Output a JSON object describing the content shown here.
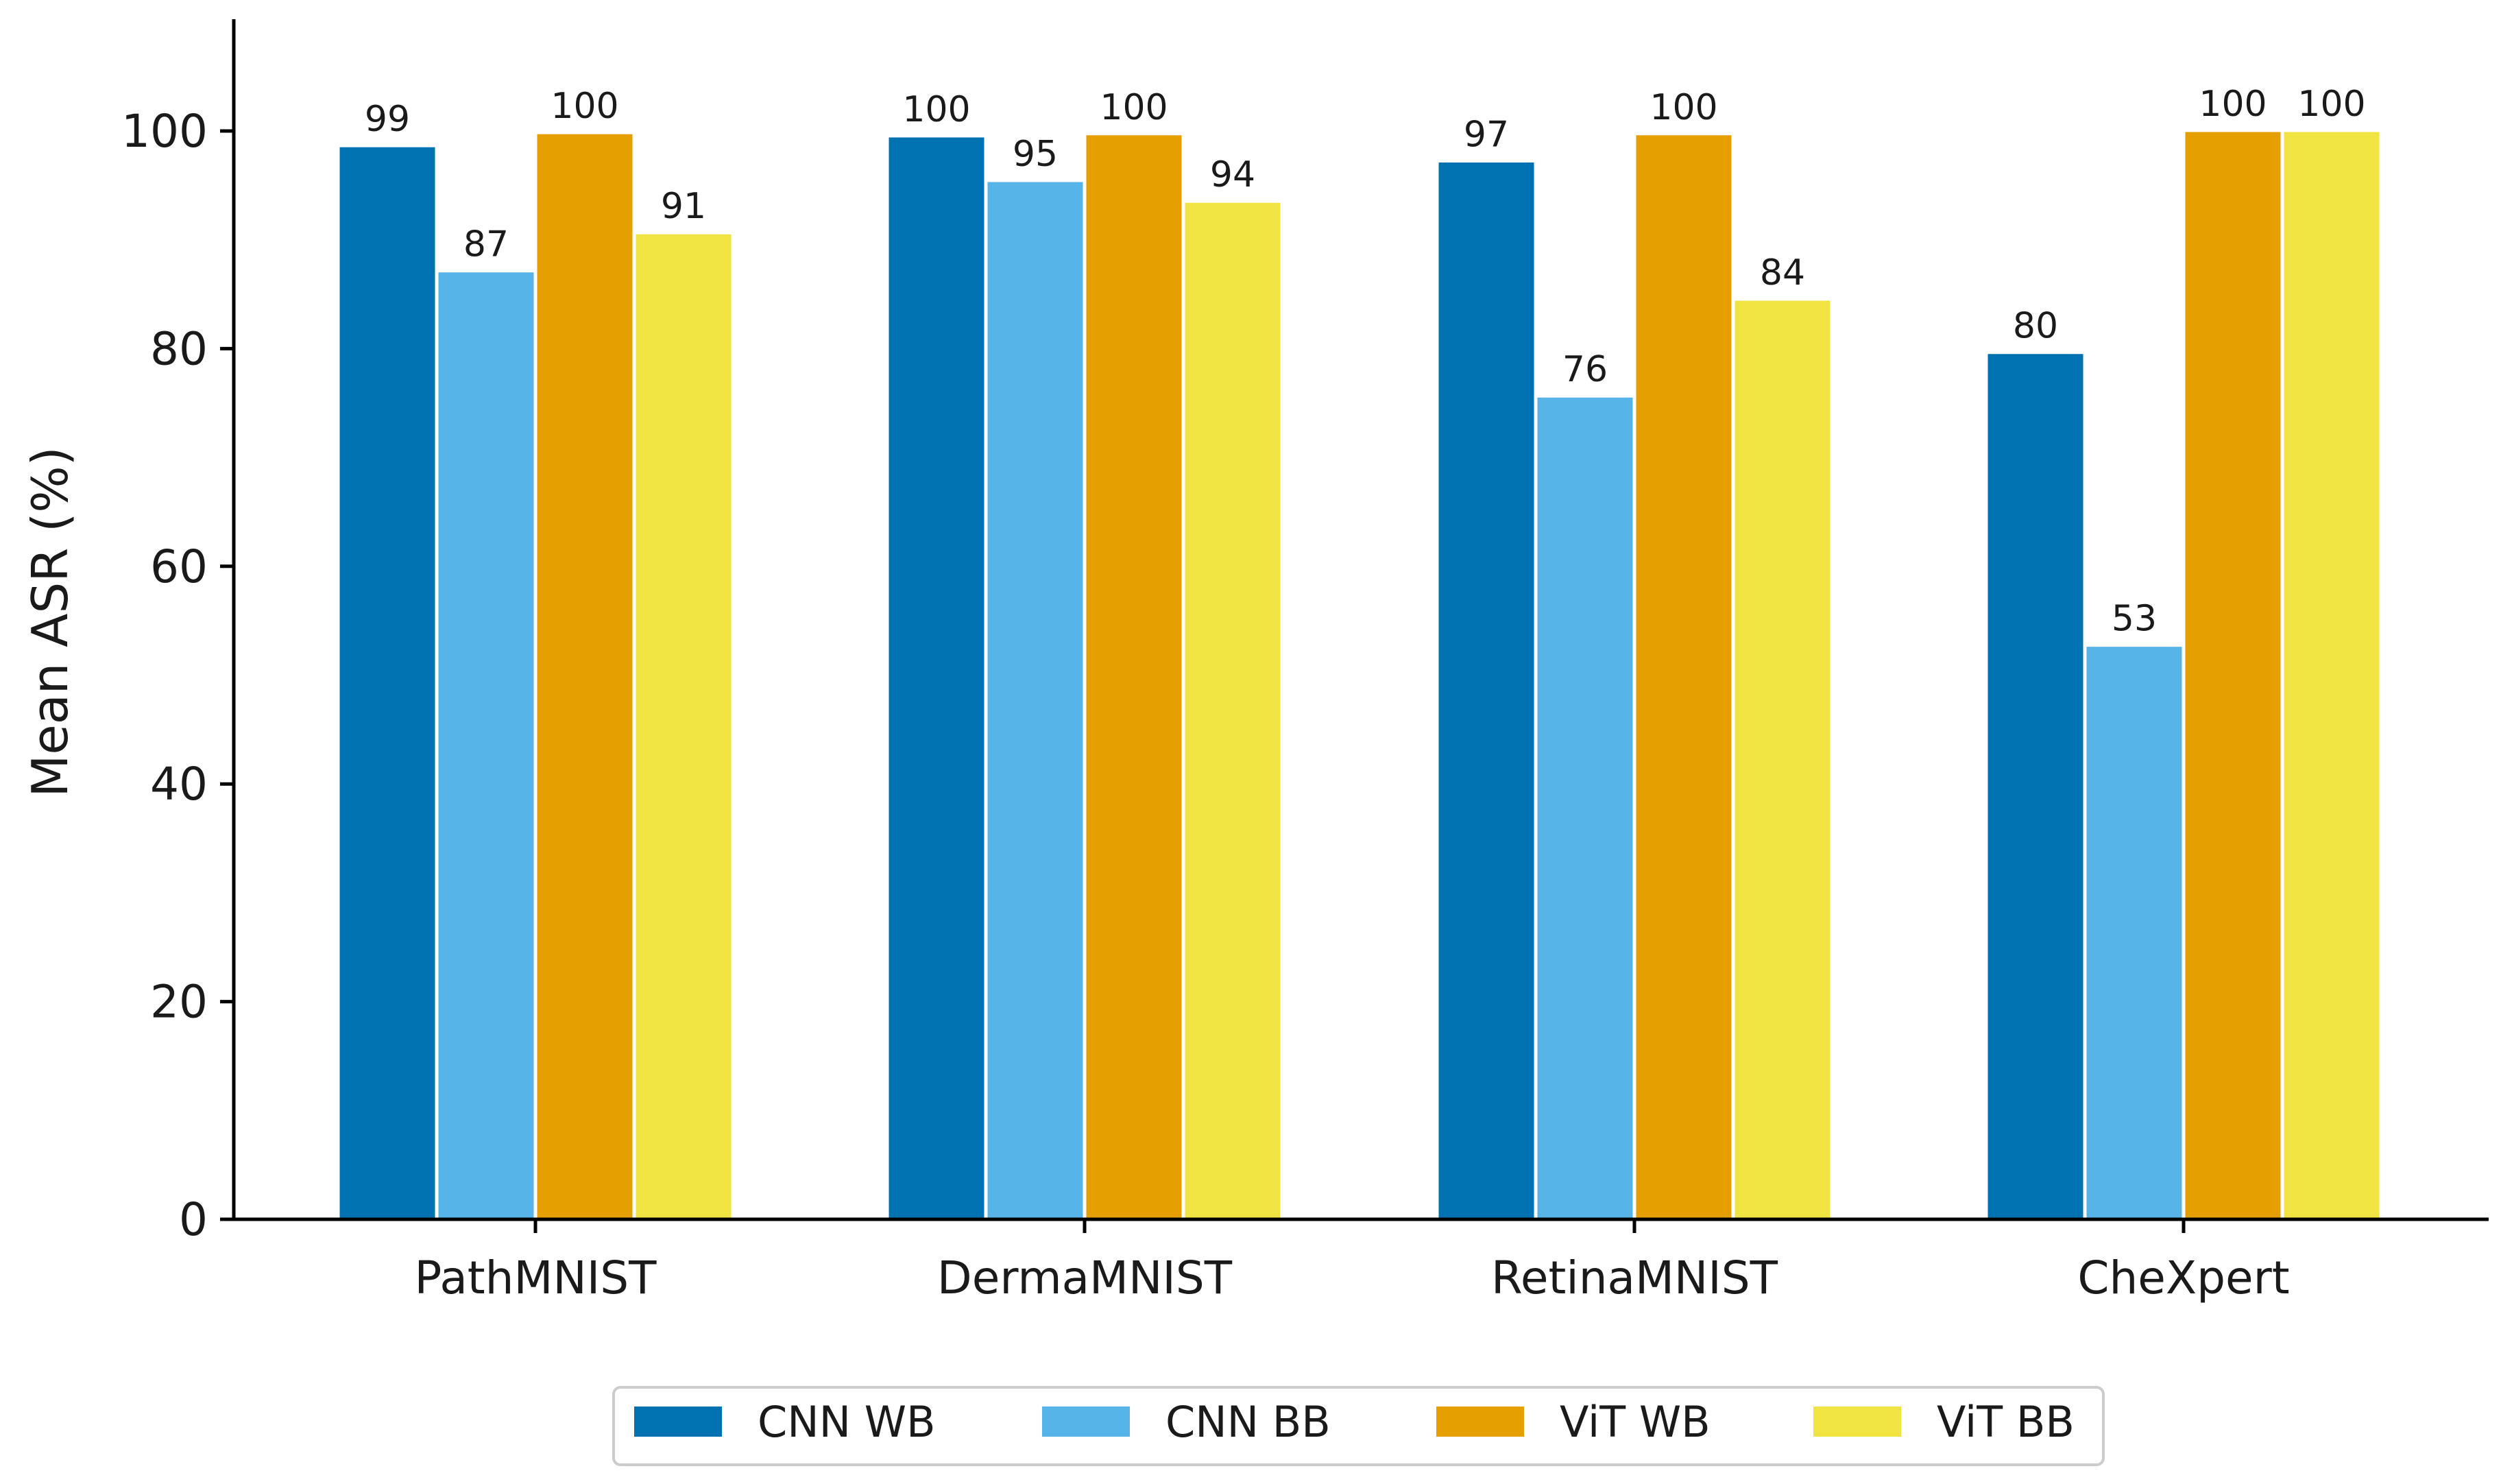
{
  "chart_data": {
    "type": "bar",
    "title": "",
    "xlabel": "",
    "ylabel": "Mean ASR (%)",
    "ylim": [
      0,
      110
    ],
    "yticks": [
      0,
      20,
      40,
      60,
      80,
      100
    ],
    "grid": false,
    "legend_position": "bottom-center",
    "categories": [
      "PathMNIST",
      "DermaMNIST",
      "RetinaMNIST",
      "CheXpert"
    ],
    "series": [
      {
        "name": "CNN WB",
        "color": "#0072B2",
        "values": [
          98.6,
          99.5,
          97.2,
          79.6
        ],
        "labels": [
          "99",
          "100",
          "97",
          "80"
        ]
      },
      {
        "name": "CNN BB",
        "color": "#56B4E9",
        "values": [
          87.1,
          95.4,
          75.6,
          52.7
        ],
        "labels": [
          "87",
          "95",
          "76",
          "53"
        ]
      },
      {
        "name": "ViT WB",
        "color": "#E69F00",
        "values": [
          99.8,
          99.7,
          99.7,
          100.0
        ],
        "labels": [
          "100",
          "100",
          "100",
          "100"
        ]
      },
      {
        "name": "ViT BB",
        "color": "#F0E442",
        "values": [
          90.6,
          93.5,
          84.5,
          100.0
        ],
        "labels": [
          "91",
          "94",
          "84",
          "100"
        ]
      }
    ]
  }
}
